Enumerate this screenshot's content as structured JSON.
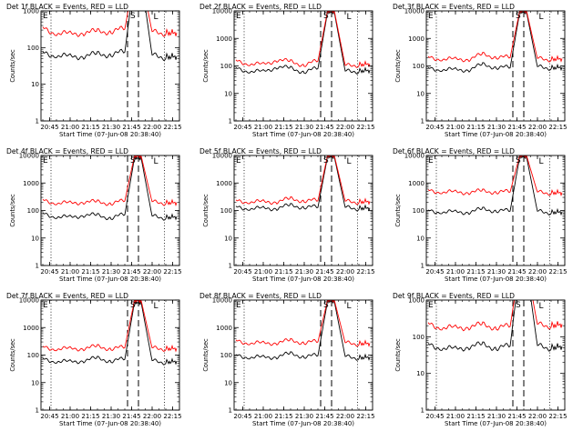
{
  "colors": {
    "events": "#000000",
    "lld": "#ff0000",
    "frame": "#000000"
  },
  "chart_data": [
    {
      "type": "line",
      "title": "Det 1f BLACK = Events, RED = LLD",
      "xlabel": "Start Time (07-Jun-08 20:38:40)",
      "ylabel": "Counts/sec",
      "yscale": "log",
      "ylim": [
        1,
        1000
      ],
      "yticks": [
        "1",
        "10",
        "100",
        "1000"
      ],
      "xticks": [
        "20:45",
        "21:00",
        "21:15",
        "21:30",
        "21:45",
        "22:00",
        "22:15"
      ],
      "xlim": [
        "20:38:40",
        "22:20:00"
      ],
      "dotted_times": [
        "20:46",
        "22:09"
      ],
      "dashed_times": [
        "21:42",
        "21:50"
      ],
      "markers": {
        "S": "S",
        "E": "E",
        "L": "L"
      },
      "series": [
        {
          "name": "Events",
          "color": "#000000",
          "x": [
            "20:40",
            "20:50",
            "21:00",
            "21:10",
            "21:20",
            "21:30",
            "21:40",
            "21:47",
            "21:52",
            "22:00",
            "22:10",
            "22:18"
          ],
          "y": [
            70,
            62,
            55,
            60,
            65,
            66,
            75,
            8000,
            8000,
            60,
            55,
            58
          ]
        },
        {
          "name": "LLD",
          "color": "#ff0000",
          "x": [
            "20:40",
            "20:50",
            "21:00",
            "21:10",
            "21:20",
            "21:30",
            "21:40",
            "21:47",
            "21:52",
            "22:00",
            "22:10",
            "22:18"
          ],
          "y": [
            330,
            250,
            230,
            260,
            270,
            280,
            320,
            9000,
            9000,
            260,
            250,
            255
          ]
        }
      ]
    },
    {
      "type": "line",
      "title": "Det 2f BLACK = Events, RED = LLD",
      "xlabel": "Start Time (07-Jun-08 20:38:40)",
      "ylabel": "Counts/sec",
      "yscale": "log",
      "ylim": [
        1,
        10000
      ],
      "yticks": [
        "1",
        "10",
        "100",
        "1000",
        "10000"
      ],
      "xticks": [
        "20:45",
        "21:00",
        "21:15",
        "21:30",
        "21:45",
        "22:00",
        "22:15"
      ],
      "xlim": [
        "20:38:40",
        "22:20:00"
      ],
      "dotted_times": [
        "20:46",
        "22:09"
      ],
      "dashed_times": [
        "21:42",
        "21:50"
      ],
      "markers": {
        "S": "S",
        "E": "E",
        "L": "L"
      },
      "series": [
        {
          "name": "Events",
          "color": "#000000",
          "x": [
            "20:40",
            "20:50",
            "21:00",
            "21:10",
            "21:20",
            "21:30",
            "21:40",
            "21:47",
            "21:52",
            "22:00",
            "22:10",
            "22:18"
          ],
          "y": [
            80,
            65,
            60,
            95,
            80,
            62,
            80,
            9000,
            9000,
            62,
            65,
            70
          ]
        },
        {
          "name": "LLD",
          "color": "#ff0000",
          "x": [
            "20:40",
            "20:50",
            "21:00",
            "21:10",
            "21:20",
            "21:30",
            "21:40",
            "21:47",
            "21:52",
            "22:00",
            "22:10",
            "22:18"
          ],
          "y": [
            150,
            120,
            110,
            170,
            140,
            110,
            150,
            10000,
            10000,
            100,
            110,
            120
          ]
        }
      ]
    },
    {
      "type": "line",
      "title": "Det 3f BLACK = Events, RED = LLD",
      "xlabel": "Start Time (07-Jun-08 20:38:40)",
      "ylabel": "Counts/sec",
      "yscale": "log",
      "ylim": [
        1,
        10000
      ],
      "yticks": [
        "1",
        "10",
        "100",
        "1000",
        "10000"
      ],
      "xticks": [
        "20:45",
        "21:00",
        "21:15",
        "21:30",
        "21:45",
        "22:00",
        "22:15"
      ],
      "xlim": [
        "20:38:40",
        "22:20:00"
      ],
      "dotted_times": [
        "20:46",
        "22:09"
      ],
      "dashed_times": [
        "21:42",
        "21:50"
      ],
      "markers": {
        "S": "S",
        "E": "E",
        "L": "L"
      },
      "series": [
        {
          "name": "Events",
          "color": "#000000",
          "x": [
            "20:40",
            "20:50",
            "21:00",
            "21:10",
            "21:20",
            "21:30",
            "21:40",
            "21:47",
            "21:52",
            "22:00",
            "22:10",
            "22:18"
          ],
          "y": [
            80,
            75,
            70,
            75,
            110,
            90,
            85,
            9000,
            9000,
            90,
            85,
            90
          ]
        },
        {
          "name": "LLD",
          "color": "#ff0000",
          "x": [
            "20:40",
            "20:50",
            "21:00",
            "21:10",
            "21:20",
            "21:30",
            "21:40",
            "21:47",
            "21:52",
            "22:00",
            "22:10",
            "22:18"
          ],
          "y": [
            200,
            180,
            170,
            180,
            260,
            210,
            200,
            10000,
            10000,
            180,
            175,
            185
          ]
        }
      ]
    },
    {
      "type": "line",
      "title": "Det 4f BLACK = Events, RED = LLD",
      "xlabel": "Start Time (07-Jun-08 20:38:40)",
      "ylabel": "Counts/sec",
      "yscale": "log",
      "ylim": [
        1,
        10000
      ],
      "yticks": [
        "1",
        "10",
        "100",
        "1000",
        "10000"
      ],
      "xticks": [
        "20:45",
        "21:00",
        "21:15",
        "21:30",
        "21:45",
        "22:00",
        "22:15"
      ],
      "xlim": [
        "20:38:40",
        "22:20:00"
      ],
      "dotted_times": [
        "20:46",
        "22:09"
      ],
      "dashed_times": [
        "21:42",
        "21:50"
      ],
      "markers": {
        "S": "S",
        "E": "E",
        "L": "L"
      },
      "series": [
        {
          "name": "Events",
          "color": "#000000",
          "x": [
            "20:40",
            "20:50",
            "21:00",
            "21:10",
            "21:20",
            "21:30",
            "21:40",
            "21:47",
            "21:52",
            "22:00",
            "22:10",
            "22:18"
          ],
          "y": [
            75,
            60,
            55,
            70,
            65,
            55,
            70,
            8000,
            8000,
            60,
            55,
            60
          ]
        },
        {
          "name": "LLD",
          "color": "#ff0000",
          "x": [
            "20:40",
            "20:50",
            "21:00",
            "21:10",
            "21:20",
            "21:30",
            "21:40",
            "21:47",
            "21:52",
            "22:00",
            "22:10",
            "22:18"
          ],
          "y": [
            230,
            190,
            180,
            210,
            200,
            185,
            220,
            9500,
            9500,
            200,
            190,
            195
          ]
        }
      ]
    },
    {
      "type": "line",
      "title": "Det 5f BLACK = Events, RED = LLD",
      "xlabel": "Start Time (07-Jun-08 20:38:40)",
      "ylabel": "Counts/sec",
      "yscale": "log",
      "ylim": [
        1,
        10000
      ],
      "yticks": [
        "1",
        "10",
        "100",
        "1000",
        "10000"
      ],
      "xticks": [
        "20:45",
        "21:00",
        "21:15",
        "21:30",
        "21:45",
        "22:00",
        "22:15"
      ],
      "xlim": [
        "20:38:40",
        "22:20:00"
      ],
      "dotted_times": [
        "20:46",
        "22:09"
      ],
      "dashed_times": [
        "21:42",
        "21:50"
      ],
      "markers": {
        "S": "S",
        "E": "E",
        "L": "L"
      },
      "series": [
        {
          "name": "Events",
          "color": "#000000",
          "x": [
            "20:40",
            "20:50",
            "21:00",
            "21:10",
            "21:20",
            "21:30",
            "21:40",
            "21:47",
            "21:52",
            "22:00",
            "22:10",
            "22:18"
          ],
          "y": [
            130,
            120,
            115,
            125,
            150,
            135,
            130,
            9000,
            9000,
            125,
            120,
            125
          ]
        },
        {
          "name": "LLD",
          "color": "#ff0000",
          "x": [
            "20:40",
            "20:50",
            "21:00",
            "21:10",
            "21:20",
            "21:30",
            "21:40",
            "21:47",
            "21:52",
            "22:00",
            "22:10",
            "22:18"
          ],
          "y": [
            220,
            210,
            200,
            215,
            260,
            230,
            225,
            10000,
            10000,
            210,
            205,
            215
          ]
        }
      ]
    },
    {
      "type": "line",
      "title": "Det 6f BLACK = Events, RED = LLD",
      "xlabel": "Start Time (07-Jun-08 20:38:40)",
      "ylabel": "Counts/sec",
      "yscale": "log",
      "ylim": [
        1,
        10000
      ],
      "yticks": [
        "1",
        "10",
        "100",
        "1000",
        "10000"
      ],
      "xticks": [
        "20:45",
        "21:00",
        "21:15",
        "21:30",
        "21:45",
        "22:00",
        "22:15"
      ],
      "xlim": [
        "20:38:40",
        "22:20:00"
      ],
      "dotted_times": [
        "20:46",
        "22:09"
      ],
      "dashed_times": [
        "21:42",
        "21:50"
      ],
      "markers": {
        "S": "S",
        "E": "E",
        "L": "L"
      },
      "series": [
        {
          "name": "Events",
          "color": "#000000",
          "x": [
            "20:40",
            "20:50",
            "21:00",
            "21:10",
            "21:20",
            "21:30",
            "21:40",
            "21:47",
            "21:52",
            "22:00",
            "22:10",
            "22:18"
          ],
          "y": [
            95,
            90,
            85,
            90,
            110,
            100,
            95,
            9000,
            9000,
            90,
            85,
            90
          ]
        },
        {
          "name": "LLD",
          "color": "#ff0000",
          "x": [
            "20:40",
            "20:50",
            "21:00",
            "21:10",
            "21:20",
            "21:30",
            "21:40",
            "21:47",
            "21:52",
            "22:00",
            "22:10",
            "22:18"
          ],
          "y": [
            520,
            480,
            450,
            470,
            500,
            480,
            470,
            10000,
            10000,
            450,
            440,
            450
          ]
        }
      ]
    },
    {
      "type": "line",
      "title": "Det 7f BLACK = Events, RED = LLD",
      "xlabel": "Start Time (07-Jun-08 20:38:40)",
      "ylabel": "Counts/sec",
      "yscale": "log",
      "ylim": [
        1,
        10000
      ],
      "yticks": [
        "1",
        "10",
        "100",
        "1000",
        "10000"
      ],
      "xticks": [
        "20:45",
        "21:00",
        "21:15",
        "21:30",
        "21:45",
        "22:00",
        "22:15"
      ],
      "xlim": [
        "20:38:40",
        "22:20:00"
      ],
      "dotted_times": [
        "20:46",
        "22:09"
      ],
      "dashed_times": [
        "21:42",
        "21:50"
      ],
      "markers": {
        "S": "S",
        "E": "E",
        "L": "L"
      },
      "series": [
        {
          "name": "Events",
          "color": "#000000",
          "x": [
            "20:40",
            "20:50",
            "21:00",
            "21:10",
            "21:20",
            "21:30",
            "21:40",
            "21:47",
            "21:52",
            "22:00",
            "22:10",
            "22:18"
          ],
          "y": [
            70,
            60,
            55,
            65,
            75,
            62,
            70,
            8000,
            8000,
            60,
            55,
            60
          ]
        },
        {
          "name": "LLD",
          "color": "#ff0000",
          "x": [
            "20:40",
            "20:50",
            "21:00",
            "21:10",
            "21:20",
            "21:30",
            "21:40",
            "21:47",
            "21:52",
            "22:00",
            "22:10",
            "22:18"
          ],
          "y": [
            190,
            170,
            165,
            180,
            200,
            175,
            185,
            9500,
            9500,
            175,
            170,
            175
          ]
        }
      ]
    },
    {
      "type": "line",
      "title": "Det 8f BLACK = Events, RED = LLD",
      "xlabel": "Start Time (07-Jun-08 20:38:40)",
      "ylabel": "Counts/sec",
      "yscale": "log",
      "ylim": [
        1,
        10000
      ],
      "yticks": [
        "1",
        "10",
        "100",
        "1000",
        "10000"
      ],
      "xticks": [
        "20:45",
        "21:00",
        "21:15",
        "21:30",
        "21:45",
        "22:00",
        "22:15"
      ],
      "xlim": [
        "20:38:40",
        "22:20:00"
      ],
      "dotted_times": [
        "20:46",
        "22:09"
      ],
      "dashed_times": [
        "21:42",
        "21:50"
      ],
      "markers": {
        "S": "S",
        "E": "E",
        "L": "L"
      },
      "series": [
        {
          "name": "Events",
          "color": "#000000",
          "x": [
            "20:40",
            "20:50",
            "21:00",
            "21:10",
            "21:20",
            "21:30",
            "21:40",
            "21:47",
            "21:52",
            "22:00",
            "22:10",
            "22:18"
          ],
          "y": [
            95,
            85,
            80,
            90,
            110,
            90,
            95,
            9000,
            9000,
            85,
            80,
            85
          ]
        },
        {
          "name": "LLD",
          "color": "#ff0000",
          "x": [
            "20:40",
            "20:50",
            "21:00",
            "21:10",
            "21:20",
            "21:30",
            "21:40",
            "21:47",
            "21:52",
            "22:00",
            "22:10",
            "22:18"
          ],
          "y": [
            320,
            280,
            260,
            290,
            330,
            290,
            300,
            10000,
            10000,
            270,
            260,
            270
          ]
        }
      ]
    },
    {
      "type": "line",
      "title": "Det 9f BLACK = Events, RED = LLD",
      "xlabel": "Start Time (07-Jun-08 20:38:40)",
      "ylabel": "Counts/sec",
      "yscale": "log",
      "ylim": [
        1,
        1000
      ],
      "yticks": [
        "1",
        "10",
        "100",
        "1000"
      ],
      "xticks": [
        "20:45",
        "21:00",
        "21:15",
        "21:30",
        "21:45",
        "22:00",
        "22:15"
      ],
      "xlim": [
        "20:38:40",
        "22:20:00"
      ],
      "dotted_times": [
        "20:46",
        "22:09"
      ],
      "dashed_times": [
        "21:42",
        "21:50"
      ],
      "markers": {
        "S": "S",
        "E": "E",
        "L": "L"
      },
      "series": [
        {
          "name": "Events",
          "color": "#000000",
          "x": [
            "20:40",
            "20:50",
            "21:00",
            "21:10",
            "21:20",
            "21:30",
            "21:40",
            "21:47",
            "21:52",
            "22:00",
            "22:10",
            "22:18"
          ],
          "y": [
            60,
            50,
            45,
            55,
            60,
            50,
            55,
            8000,
            8000,
            55,
            50,
            55
          ]
        },
        {
          "name": "LLD",
          "color": "#ff0000",
          "x": [
            "20:40",
            "20:50",
            "21:00",
            "21:10",
            "21:20",
            "21:30",
            "21:40",
            "21:47",
            "21:52",
            "22:00",
            "22:10",
            "22:18"
          ],
          "y": [
            220,
            180,
            170,
            190,
            210,
            180,
            190,
            9000,
            9000,
            210,
            200,
            220
          ]
        }
      ]
    }
  ]
}
